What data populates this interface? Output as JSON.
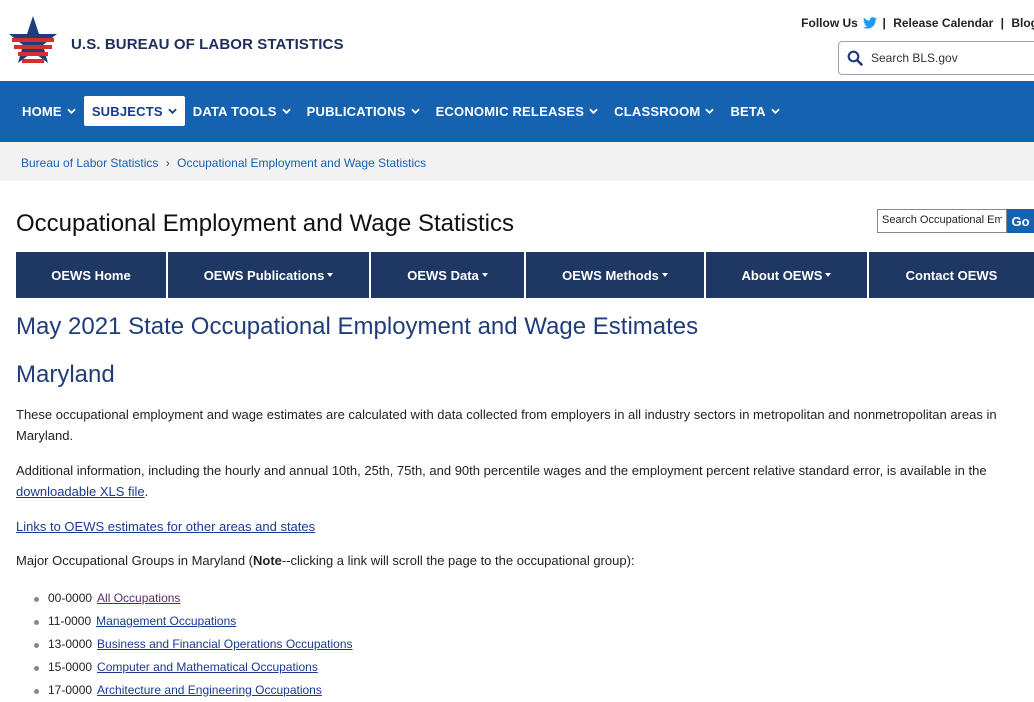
{
  "header": {
    "agency_name": "U.S. BUREAU OF LABOR STATISTICS",
    "follow_us": "Follow Us",
    "release_calendar": "Release Calendar",
    "blog": "Blog",
    "search_placeholder": "Search BLS.gov"
  },
  "nav": {
    "items": [
      {
        "label": "HOME"
      },
      {
        "label": "SUBJECTS"
      },
      {
        "label": "DATA TOOLS"
      },
      {
        "label": "PUBLICATIONS"
      },
      {
        "label": "ECONOMIC RELEASES"
      },
      {
        "label": "CLASSROOM"
      },
      {
        "label": "BETA"
      }
    ],
    "active": "SUBJECTS"
  },
  "breadcrumb": {
    "items": [
      "Bureau of Labor Statistics",
      "Occupational Employment and Wage Statistics"
    ]
  },
  "page": {
    "title": "Occupational Employment and Wage Statistics",
    "search_placeholder": "Search Occupational Em",
    "go_label": "Go"
  },
  "subnav": {
    "items": [
      {
        "label": "OEWS Home",
        "dropdown": false
      },
      {
        "label": "OEWS Publications",
        "dropdown": true
      },
      {
        "label": "OEWS Data",
        "dropdown": true
      },
      {
        "label": "OEWS Methods",
        "dropdown": true
      },
      {
        "label": "About OEWS",
        "dropdown": true
      },
      {
        "label": "Contact OEWS",
        "dropdown": false
      }
    ]
  },
  "main": {
    "heading": "May 2021 State Occupational Employment and Wage Estimates",
    "state": "Maryland",
    "intro": "These occupational employment and wage estimates are calculated with data collected from employers in all industry sectors in metropolitan and nonmetropolitan areas in Maryland.",
    "additional_prefix": "Additional information, including the hourly and annual 10th, 25th, 75th, and 90th percentile wages and the employment percent relative standard error, is available in the",
    "xls_link": "downloadable XLS file",
    "additional_suffix": ".",
    "links_other": "Links to OEWS estimates for other areas and states",
    "groups_prefix": "Major Occupational Groups in Maryland (",
    "note_label": "Note",
    "groups_suffix": "--clicking a link will scroll the page to the occupational group):",
    "groups": [
      {
        "code": "00-0000",
        "label": "All Occupations"
      },
      {
        "code": "11-0000",
        "label": "Management Occupations"
      },
      {
        "code": "13-0000",
        "label": "Business and Financial Operations Occupations"
      },
      {
        "code": "15-0000",
        "label": "Computer and Mathematical Occupations"
      },
      {
        "code": "17-0000",
        "label": "Architecture and Engineering Occupations"
      }
    ]
  },
  "colors": {
    "nav_blue": "#1562b0",
    "subnav_navy": "#1f3863",
    "heading_blue": "#1f3d7a",
    "link_blue": "#1a3a8f",
    "visited_purple": "#5b2a6e"
  },
  "icons": [
    "bls-logo-icon",
    "twitter-icon",
    "search-icon",
    "chevron-down-icon",
    "chevron-right-icon",
    "bullet-icon"
  ]
}
